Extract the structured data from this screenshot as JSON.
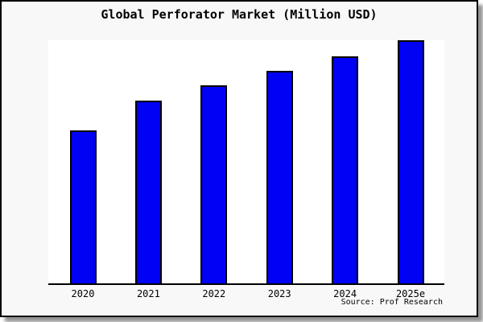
{
  "chart_data": {
    "type": "bar",
    "title": "Global Perforator Market (Million USD)",
    "categories": [
      "2020",
      "2021",
      "2022",
      "2023",
      "2024",
      "2025e"
    ],
    "values": [
      63,
      75,
      81.5,
      87.5,
      93.5,
      100
    ],
    "values_note": "No y-axis ticks or gridlines are shown; values are relative bar heights with the tallest bar (2025e) = 100",
    "xlabel": "",
    "ylabel": "",
    "ylim": [
      0,
      100
    ],
    "grid": false,
    "legend": false,
    "bar_color": "#0101f4",
    "bar_border_color": "#000000",
    "axis_color": "#000000"
  },
  "footer": {
    "source_text": "Source: Prof Research"
  },
  "colors": {
    "page_background": "#ffffff",
    "card_background": "#f8f8f8",
    "plot_background": "#ffffff",
    "title_color": "#000000",
    "shadow_color": "#3c3c3c"
  }
}
